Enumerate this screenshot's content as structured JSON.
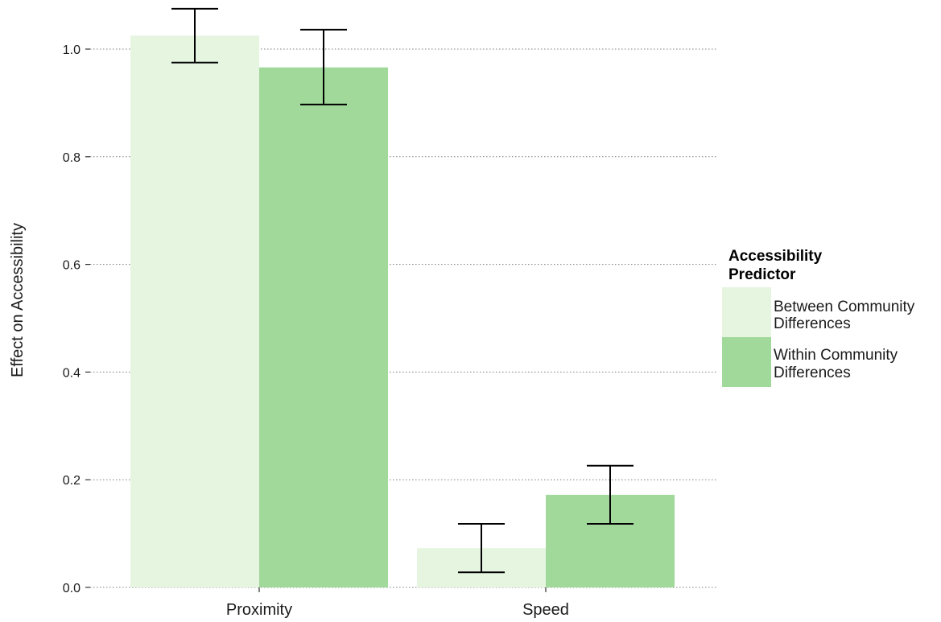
{
  "chart_data": {
    "type": "bar",
    "title": "",
    "xlabel": "",
    "ylabel": "Effect on Accessibility",
    "ylim": [
      0,
      1.1
    ],
    "yticks": [
      0.0,
      0.2,
      0.4,
      0.6,
      0.8,
      1.0
    ],
    "ytick_labels": [
      "0.0",
      "0.2",
      "0.4",
      "0.6",
      "0.8",
      "1.0"
    ],
    "grid": "horizontal dotted",
    "categories": [
      "Proximity",
      "Speed"
    ],
    "legend": {
      "title_line1": "Accessibility",
      "title_line2": "Predictor",
      "placement": "right"
    },
    "series": [
      {
        "name_line1": "Between Community",
        "name_line2": "Differences",
        "color": "#e5f5e0",
        "values": [
          1.025,
          0.073
        ],
        "err_low": [
          0.975,
          0.028
        ],
        "err_high": [
          1.075,
          0.118
        ]
      },
      {
        "name_line1": "Within Community",
        "name_line2": "Differences",
        "color": "#a1d99b",
        "values": [
          0.966,
          0.172
        ],
        "err_low": [
          0.897,
          0.118
        ],
        "err_high": [
          1.036,
          0.226
        ]
      }
    ]
  }
}
